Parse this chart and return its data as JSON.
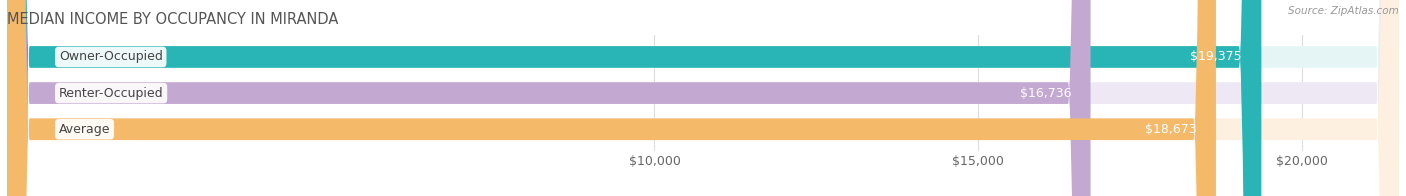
{
  "title": "MEDIAN INCOME BY OCCUPANCY IN MIRANDA",
  "source": "Source: ZipAtlas.com",
  "categories": [
    "Owner-Occupied",
    "Renter-Occupied",
    "Average"
  ],
  "values": [
    19375,
    16736,
    18673
  ],
  "bar_colors": [
    "#29b5b5",
    "#c3a8d1",
    "#f5b96a"
  ],
  "bar_bg_colors": [
    "#e5f5f5",
    "#ede8f3",
    "#fdf0e0"
  ],
  "value_labels": [
    "$19,375",
    "$16,736",
    "$18,673"
  ],
  "xlim": [
    0,
    21500
  ],
  "xticks": [
    10000,
    15000,
    20000
  ],
  "xtick_labels": [
    "$10,000",
    "$15,000",
    "$20,000"
  ],
  "title_fontsize": 10.5,
  "label_fontsize": 9,
  "value_fontsize": 9,
  "tick_fontsize": 9,
  "title_color": "#555555",
  "source_color": "#999999",
  "label_color": "#444444",
  "value_color": "#ffffff",
  "background_color": "#ffffff",
  "bar_height": 0.6,
  "bar_gap": 0.4
}
